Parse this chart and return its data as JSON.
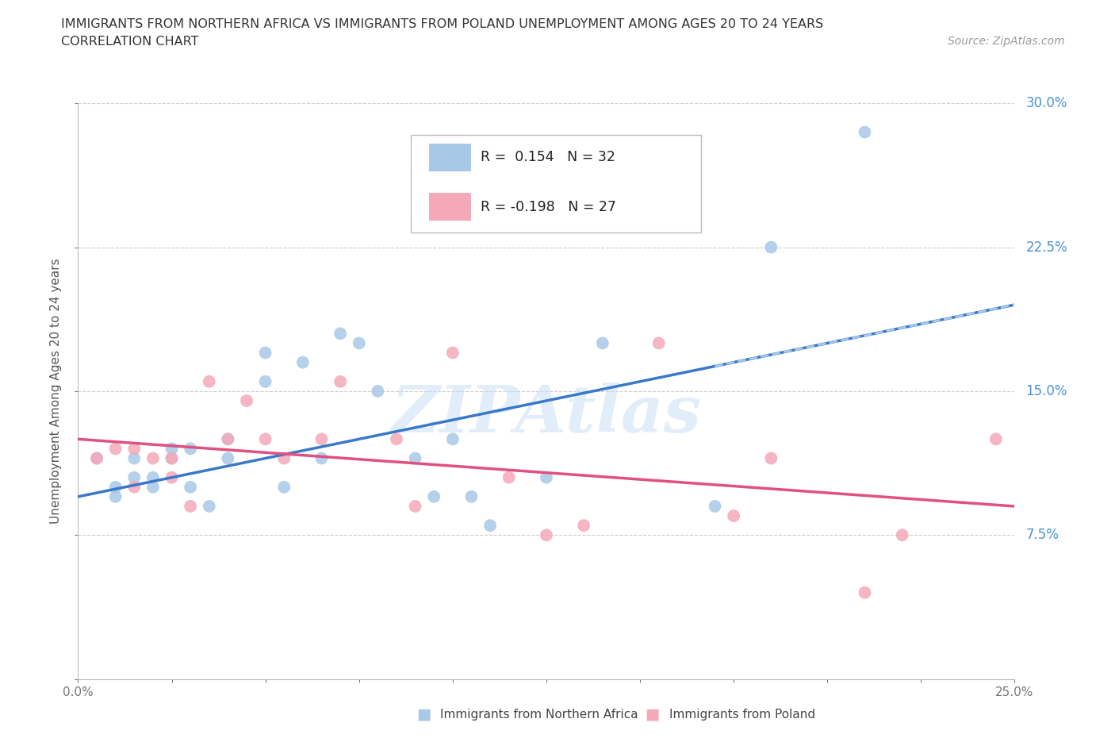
{
  "title_line1": "IMMIGRANTS FROM NORTHERN AFRICA VS IMMIGRANTS FROM POLAND UNEMPLOYMENT AMONG AGES 20 TO 24 YEARS",
  "title_line2": "CORRELATION CHART",
  "source_text": "Source: ZipAtlas.com",
  "ylabel": "Unemployment Among Ages 20 to 24 years",
  "watermark": "ZIPAtlas",
  "xlim": [
    0.0,
    0.25
  ],
  "ylim": [
    0.0,
    0.3
  ],
  "xticks": [
    0.0,
    0.025,
    0.05,
    0.075,
    0.1,
    0.125,
    0.15,
    0.175,
    0.2,
    0.225,
    0.25
  ],
  "yticks": [
    0.0,
    0.075,
    0.15,
    0.225,
    0.3
  ],
  "ytick_labels": [
    "",
    "7.5%",
    "15.0%",
    "22.5%",
    "30.0%"
  ],
  "xtick_labels": [
    "0.0%",
    "",
    "",
    "",
    "",
    "",
    "",
    "",
    "",
    "",
    "25.0%"
  ],
  "color_blue": "#a8c8e8",
  "color_pink": "#f4a8b8",
  "line_blue": "#3a78c9",
  "line_pink": "#e05080",
  "r_blue": 0.154,
  "n_blue": 32,
  "r_pink": -0.198,
  "n_pink": 27,
  "blue_x": [
    0.005,
    0.01,
    0.01,
    0.015,
    0.015,
    0.02,
    0.02,
    0.025,
    0.025,
    0.03,
    0.03,
    0.035,
    0.04,
    0.04,
    0.05,
    0.05,
    0.055,
    0.06,
    0.065,
    0.07,
    0.075,
    0.08,
    0.09,
    0.095,
    0.1,
    0.105,
    0.11,
    0.125,
    0.14,
    0.17,
    0.185,
    0.21
  ],
  "blue_y": [
    0.115,
    0.1,
    0.095,
    0.115,
    0.105,
    0.1,
    0.105,
    0.115,
    0.12,
    0.1,
    0.12,
    0.09,
    0.125,
    0.115,
    0.17,
    0.155,
    0.1,
    0.165,
    0.115,
    0.18,
    0.175,
    0.15,
    0.115,
    0.095,
    0.125,
    0.095,
    0.08,
    0.105,
    0.175,
    0.09,
    0.225,
    0.285
  ],
  "pink_x": [
    0.005,
    0.01,
    0.015,
    0.015,
    0.02,
    0.025,
    0.025,
    0.03,
    0.035,
    0.04,
    0.045,
    0.05,
    0.055,
    0.065,
    0.07,
    0.085,
    0.09,
    0.1,
    0.115,
    0.125,
    0.135,
    0.155,
    0.175,
    0.185,
    0.21,
    0.22,
    0.245
  ],
  "pink_y": [
    0.115,
    0.12,
    0.12,
    0.1,
    0.115,
    0.115,
    0.105,
    0.09,
    0.155,
    0.125,
    0.145,
    0.125,
    0.115,
    0.125,
    0.155,
    0.125,
    0.09,
    0.17,
    0.105,
    0.075,
    0.08,
    0.175,
    0.085,
    0.115,
    0.045,
    0.075,
    0.125
  ],
  "blue_line_x0": 0.0,
  "blue_line_x1": 0.25,
  "blue_line_y0": 0.095,
  "blue_line_y1": 0.195,
  "pink_line_x0": 0.0,
  "pink_line_x1": 0.25,
  "pink_line_y0": 0.125,
  "pink_line_y1": 0.09
}
